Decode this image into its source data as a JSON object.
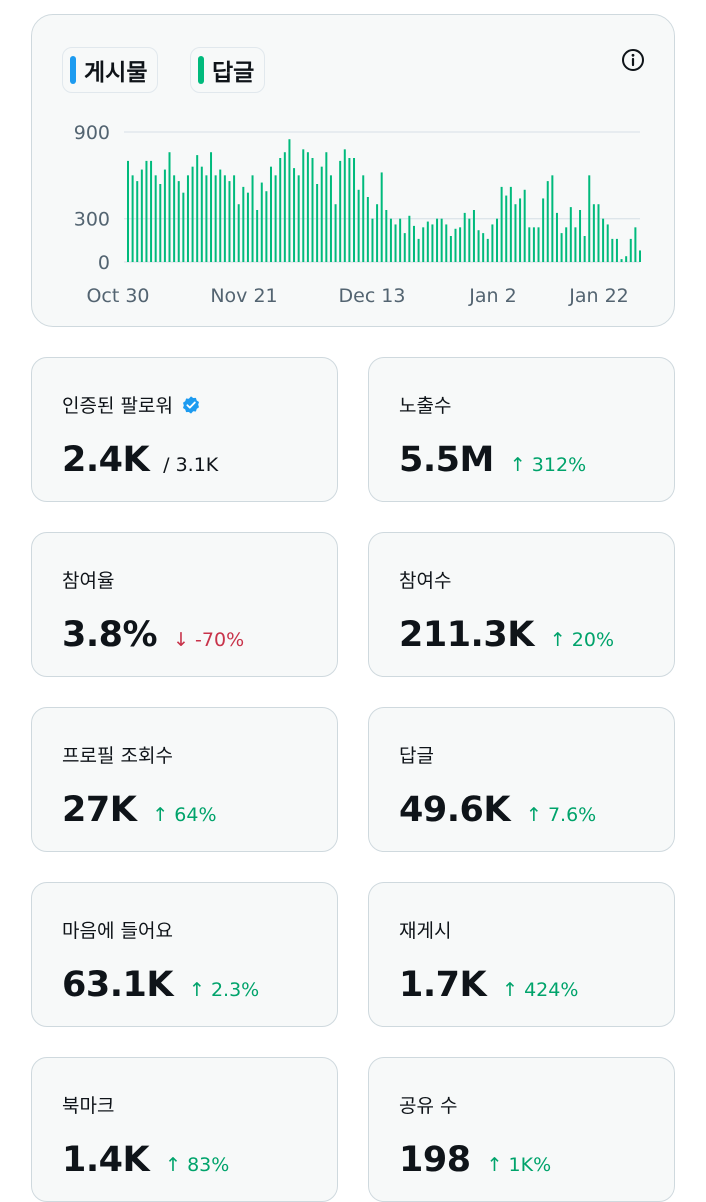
{
  "legend": {
    "posts": {
      "label": "게시물",
      "color": "#1d9bf0"
    },
    "replies": {
      "label": "답글",
      "color": "#00ba7c"
    }
  },
  "info_icon": "info-circle-icon",
  "chart_data": {
    "type": "bar",
    "title": "",
    "xlabel": "",
    "ylabel": "",
    "ylim": [
      0,
      900
    ],
    "yticks": [
      "900",
      "300",
      "0"
    ],
    "xticks": [
      "Oct 30",
      "Nov 21",
      "Dec 13",
      "Jan 2",
      "Jan 22"
    ],
    "grid": true,
    "series": [
      {
        "name": "답글",
        "color": "#00ba7c",
        "values": [
          700,
          600,
          560,
          640,
          700,
          700,
          600,
          540,
          640,
          760,
          600,
          560,
          480,
          600,
          660,
          740,
          660,
          600,
          760,
          600,
          640,
          600,
          560,
          600,
          400,
          520,
          480,
          600,
          360,
          550,
          490,
          660,
          600,
          720,
          760,
          850,
          650,
          600,
          780,
          760,
          720,
          540,
          660,
          760,
          600,
          400,
          700,
          780,
          720,
          720,
          500,
          600,
          450,
          300,
          400,
          620,
          360,
          300,
          260,
          300,
          200,
          320,
          250,
          160,
          240,
          280,
          260,
          300,
          300,
          260,
          180,
          230,
          240,
          340,
          300,
          360,
          220,
          200,
          160,
          260,
          300,
          520,
          460,
          520,
          400,
          440,
          500,
          240,
          240,
          240,
          440,
          560,
          600,
          340,
          200,
          240,
          380,
          240,
          360,
          180,
          600,
          400,
          400,
          300,
          260,
          160,
          160,
          20,
          40,
          160,
          240,
          80
        ]
      }
    ]
  },
  "stats": [
    {
      "label": "인증된 팔로워",
      "value": "2.4K",
      "sub": "/ 3.1K",
      "verified": true
    },
    {
      "label": "노출수",
      "value": "5.5M",
      "delta": "↑ 312%",
      "dir": "up"
    },
    {
      "label": "참여율",
      "value": "3.8%",
      "delta": "↓ -70%",
      "dir": "down"
    },
    {
      "label": "참여수",
      "value": "211.3K",
      "delta": "↑ 20%",
      "dir": "up"
    },
    {
      "label": "프로필 조회수",
      "value": "27K",
      "delta": "↑ 64%",
      "dir": "up"
    },
    {
      "label": "답글",
      "value": "49.6K",
      "delta": "↑ 7.6%",
      "dir": "up"
    },
    {
      "label": "마음에 들어요",
      "value": "63.1K",
      "delta": "↑ 2.3%",
      "dir": "up"
    },
    {
      "label": "재게시",
      "value": "1.7K",
      "delta": "↑ 424%",
      "dir": "up"
    },
    {
      "label": "북마크",
      "value": "1.4K",
      "delta": "↑ 83%",
      "dir": "up"
    },
    {
      "label": "공유 수",
      "value": "198",
      "delta": "↑ 1K%",
      "dir": "up"
    }
  ]
}
